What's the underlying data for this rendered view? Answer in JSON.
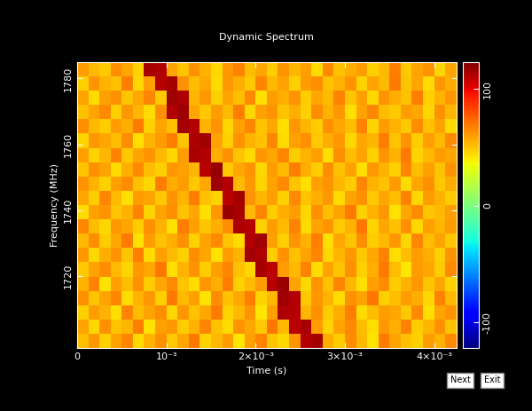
{
  "chart_data": {
    "type": "heatmap",
    "title": "Dynamic Spectrum",
    "x_label": "Time (s)",
    "y_label": "Frequency (MHz)",
    "xlim": [
      0,
      0.00425
    ],
    "ylim": [
      1698,
      1785
    ],
    "xticks": [
      0,
      {
        "value": 0.001,
        "label": "10⁻³"
      },
      {
        "value": 0.002,
        "label": "2×10⁻³"
      },
      {
        "value": 0.003,
        "label": "3×10⁻³"
      },
      {
        "value": 0.004,
        "label": "4×10⁻³"
      }
    ],
    "yticks": [
      1720,
      1740,
      1760,
      1780
    ],
    "colorbar_range": [
      -122,
      123
    ],
    "colorbar_ticks": [
      -100,
      0,
      100
    ],
    "buttons": [
      "Next",
      "Exit"
    ],
    "x_edges": [
      0,
      0.000125,
      0.00025,
      0.000375,
      0.0005,
      0.000625,
      0.00075,
      0.000875,
      0.001,
      0.001125,
      0.00125,
      0.001375,
      0.0015,
      0.001625,
      0.00175,
      0.001875,
      0.002,
      0.002125,
      0.00225,
      0.002375,
      0.0025,
      0.002625,
      0.00275,
      0.002875,
      0.003,
      0.003125,
      0.00325,
      0.003375,
      0.0035,
      0.003625,
      0.00375,
      0.003875,
      0.004,
      0.004125,
      0.00425
    ],
    "y_edges": [
      1698,
      1702.35,
      1706.7,
      1711.05,
      1715.4,
      1719.75,
      1724.1,
      1728.45,
      1732.8,
      1737.15,
      1741.5,
      1745.85,
      1750.2,
      1754.55,
      1758.9,
      1763.25,
      1767.6,
      1771.95,
      1776.3,
      1780.65,
      1785
    ],
    "cells": [
      [
        52,
        61,
        47,
        58,
        66,
        44,
        55,
        63,
        49,
        57,
        70,
        46,
        53,
        60,
        41,
        59,
        67,
        50,
        45,
        62,
        112,
        115,
        56,
        48,
        64,
        53,
        42,
        69,
        58,
        51,
        47,
        60,
        55,
        65
      ],
      [
        58,
        45,
        63,
        50,
        54,
        68,
        42,
        59,
        61,
        48,
        55,
        66,
        51,
        44,
        62,
        57,
        49,
        70,
        53,
        110,
        114,
        60,
        46,
        58,
        65,
        52,
        43,
        61,
        56,
        67,
        48,
        54,
        63,
        50
      ],
      [
        47,
        60,
        55,
        43,
        67,
        52,
        58,
        64,
        45,
        61,
        50,
        57,
        69,
        46,
        53,
        62,
        41,
        59,
        113,
        111,
        54,
        63,
        48,
        56,
        68,
        44,
        52,
        60,
        57,
        49,
        65,
        43,
        58,
        62
      ],
      [
        63,
        50,
        58,
        66,
        44,
        55,
        61,
        47,
        69,
        53,
        59,
        42,
        64,
        51,
        57,
        68,
        46,
        54,
        116,
        112,
        49,
        61,
        55,
        44,
        63,
        58,
        70,
        47,
        52,
        60,
        56,
        45,
        67,
        53
      ],
      [
        55,
        67,
        42,
        59,
        52,
        63,
        48,
        57,
        65,
        50,
        44,
        61,
        56,
        68,
        47,
        53,
        60,
        111,
        117,
        58,
        45,
        62,
        51,
        66,
        54,
        43,
        59,
        64,
        48,
        55,
        61,
        50,
        57,
        46
      ],
      [
        49,
        58,
        64,
        53,
        46,
        61,
        57,
        70,
        43,
        55,
        62,
        48,
        59,
        66,
        51,
        45,
        114,
        110,
        60,
        53,
        67,
        44,
        58,
        50,
        63,
        47,
        56,
        69,
        52,
        41,
        60,
        57,
        48,
        65
      ],
      [
        61,
        45,
        56,
        62,
        50,
        68,
        44,
        59,
        53,
        47,
        64,
        57,
        42,
        60,
        55,
        115,
        113,
        48,
        63,
        51,
        58,
        66,
        45,
        54,
        61,
        49,
        57,
        67,
        43,
        52,
        60,
        56,
        47,
        62
      ],
      [
        53,
        64,
        48,
        57,
        69,
        42,
        60,
        51,
        56,
        63,
        46,
        58,
        65,
        50,
        44,
        112,
        116,
        59,
        47,
        62,
        55,
        68,
        43,
        57,
        50,
        64,
        48,
        53,
        61,
        45,
        66,
        52,
        58,
        49
      ],
      [
        66,
        52,
        45,
        61,
        57,
        48,
        63,
        55,
        42,
        68,
        59,
        50,
        56,
        64,
        113,
        111,
        47,
        60,
        53,
        67,
        44,
        58,
        62,
        49,
        55,
        70,
        46,
        57,
        51,
        63,
        45,
        59,
        54,
        60
      ],
      [
        44,
        59,
        62,
        50,
        55,
        67,
        46,
        58,
        64,
        51,
        57,
        43,
        61,
        117,
        114,
        53,
        66,
        48,
        56,
        60,
        45,
        63,
        52,
        58,
        69,
        47,
        55,
        61,
        42,
        57,
        64,
        50,
        53,
        59
      ],
      [
        57,
        48,
        66,
        53,
        43,
        60,
        58,
        49,
        62,
        55,
        68,
        51,
        46,
        110,
        115,
        62,
        54,
        59,
        47,
        65,
        50,
        56,
        61,
        44,
        58,
        63,
        49,
        57,
        52,
        67,
        45,
        60,
        55,
        48
      ],
      [
        62,
        55,
        47,
        59,
        64,
        51,
        45,
        68,
        56,
        60,
        49,
        57,
        116,
        112,
        53,
        61,
        46,
        58,
        65,
        50,
        43,
        59,
        62,
        54,
        48,
        66,
        55,
        51,
        60,
        44,
        57,
        63,
        49,
        56
      ],
      [
        50,
        63,
        58,
        44,
        56,
        65,
        52,
        47,
        61,
        59,
        54,
        111,
        118,
        49,
        57,
        62,
        45,
        60,
        53,
        68,
        56,
        48,
        64,
        51,
        58,
        43,
        61,
        55,
        47,
        66,
        52,
        59,
        50,
        62
      ],
      [
        59,
        46,
        54,
        67,
        49,
        58,
        62,
        53,
        45,
        60,
        114,
        112,
        56,
        63,
        50,
        44,
        61,
        57,
        66,
        48,
        55,
        59,
        43,
        64,
        52,
        58,
        47,
        62,
        55,
        69,
        46,
        53,
        60,
        57
      ],
      [
        46,
        61,
        57,
        52,
        64,
        43,
        55,
        60,
        68,
        50,
        113,
        116,
        58,
        47,
        62,
        55,
        51,
        66,
        44,
        59,
        63,
        49,
        56,
        61,
        45,
        57,
        54,
        68,
        50,
        62,
        48,
        59,
        53,
        65
      ],
      [
        64,
        53,
        48,
        60,
        56,
        69,
        47,
        58,
        51,
        115,
        111,
        55,
        62,
        45,
        59,
        66,
        50,
        57,
        43,
        61,
        54,
        48,
        63,
        57,
        52,
        67,
        46,
        60,
        55,
        49,
        64,
        51,
        58,
        44
      ],
      [
        51,
        58,
        65,
        47,
        61,
        54,
        44,
        63,
        112,
        117,
        57,
        49,
        60,
        53,
        68,
        45,
        59,
        62,
        50,
        56,
        47,
        64,
        55,
        61,
        43,
        58,
        66,
        52,
        49,
        60,
        57,
        45,
        63,
        54
      ],
      [
        58,
        44,
        59,
        63,
        50,
        57,
        66,
        49,
        116,
        113,
        54,
        61,
        47,
        58,
        52,
        65,
        43,
        60,
        56,
        62,
        48,
        57,
        53,
        67,
        50,
        59,
        45,
        62,
        56,
        51,
        68,
        47,
        55,
        61
      ],
      [
        47,
        62,
        55,
        51,
        68,
        45,
        59,
        111,
        115,
        63,
        52,
        57,
        44,
        61,
        56,
        49,
        66,
        53,
        58,
        47,
        60,
        64,
        51,
        55,
        62,
        46,
        58,
        53,
        69,
        50,
        57,
        44,
        61,
        56
      ],
      [
        60,
        53,
        49,
        64,
        57,
        46,
        114,
        112,
        58,
        50,
        63,
        55,
        45,
        61,
        67,
        52,
        57,
        48,
        62,
        54,
        59,
        44,
        65,
        51,
        56,
        60,
        47,
        53,
        68,
        49,
        58,
        62,
        45,
        57
      ]
    ]
  }
}
